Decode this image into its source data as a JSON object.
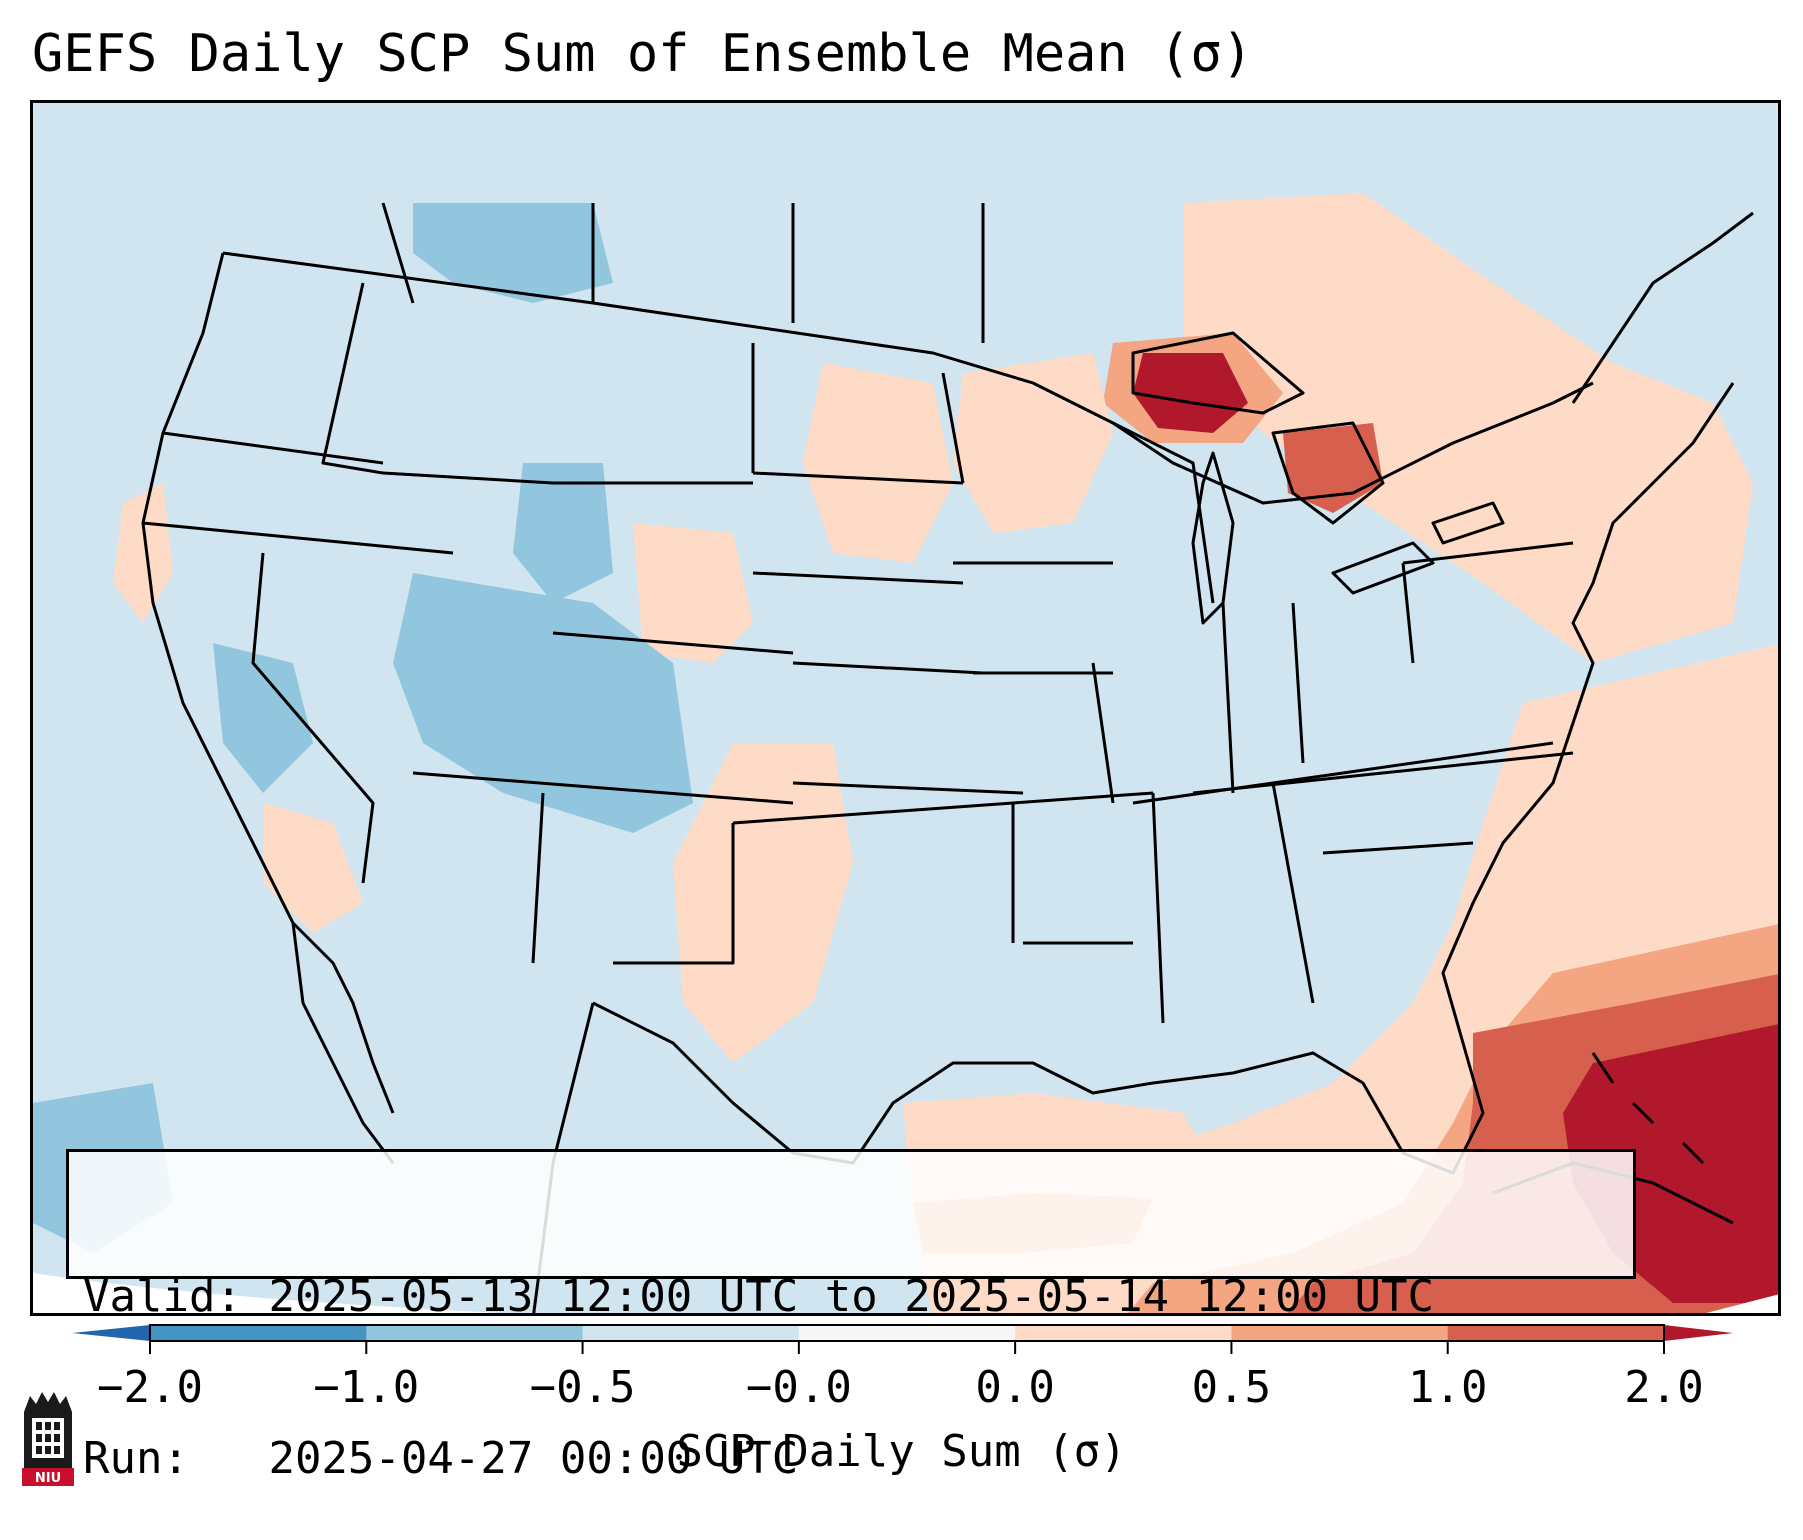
{
  "title": "GEFS Daily SCP Sum of Ensemble Mean (σ)",
  "info": {
    "valid_label": "Valid:",
    "valid_value": "2025-05-13 12:00 UTC to 2025-05-14 12:00 UTC",
    "run_label": "Run:",
    "run_value": "2025-04-27 00:00 UTC"
  },
  "colorbar": {
    "label": "SCP Daily Sum (σ)",
    "ticks": [
      "−2.0",
      "−1.0",
      "−0.5",
      "−0.0",
      "0.0",
      "0.5",
      "1.0",
      "2.0"
    ],
    "colors": [
      "#4393c3",
      "#92c5de",
      "#d1e5f0",
      "#f7f7f7",
      "#fddbc7",
      "#f4a582",
      "#d6604d",
      "#b2182b"
    ],
    "under_color": "#2166ac",
    "over_color": "#b2182b"
  },
  "logo": {
    "text": "NIU",
    "icon": "university-logo-icon"
  }
}
